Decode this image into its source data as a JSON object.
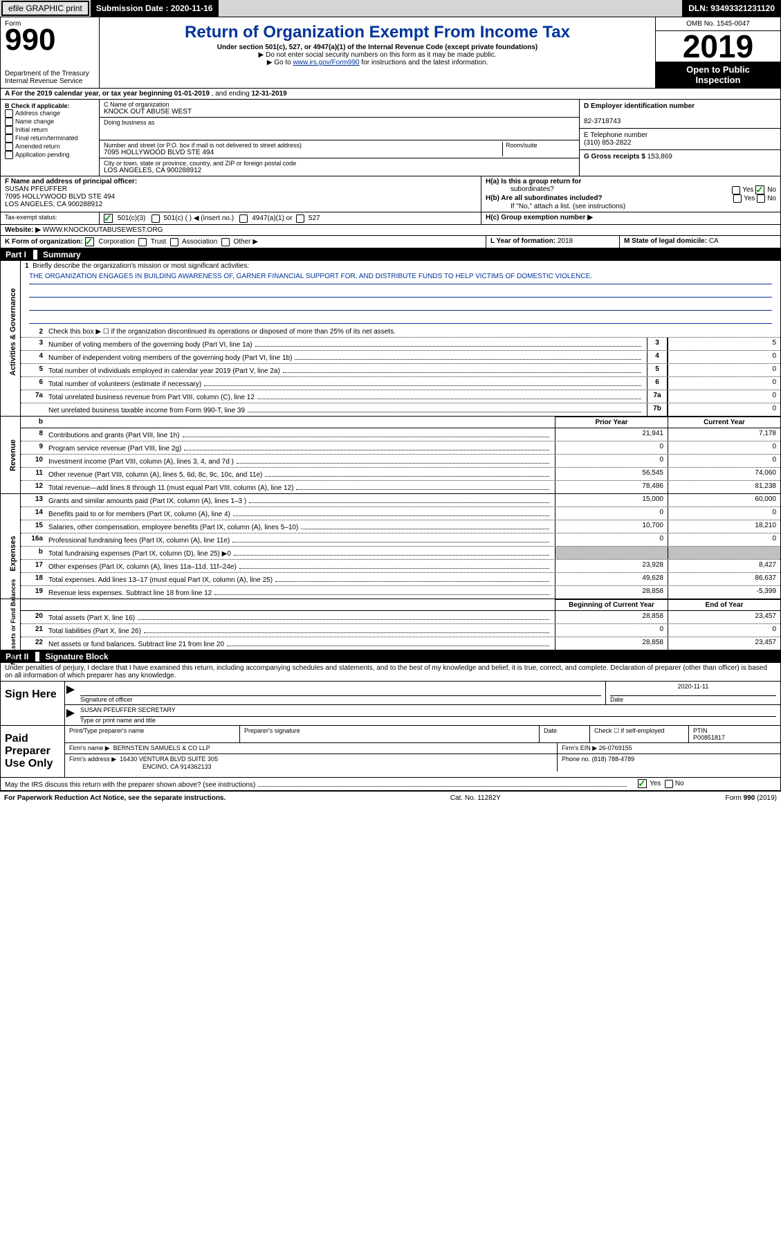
{
  "top": {
    "efile": "efile GRAPHIC print",
    "subdate_lbl": "Submission Date :",
    "subdate": "2020-11-16",
    "dln_lbl": "DLN:",
    "dln": "93493321231120"
  },
  "header": {
    "form_lbl": "Form",
    "form_no": "990",
    "title": "Return of Organization Exempt From Income Tax",
    "subtitle": "Under section 501(c), 527, or 4947(a)(1) of the Internal Revenue Code (except private foundations)",
    "bullet1": "▶ Do not enter social security numbers on this form as it may be made public.",
    "bullet2_pre": "▶ Go to ",
    "bullet2_link": "www.irs.gov/Form990",
    "bullet2_post": " for instructions and the latest information.",
    "dept": "Department of the Treasury\nInternal Revenue Service",
    "omb": "OMB No. 1545-0047",
    "year": "2019",
    "open1": "Open to Public",
    "open2": "Inspection"
  },
  "A": {
    "text_pre": "A For the 2019 calendar year, or tax year beginning ",
    "begin": "01-01-2019",
    "mid": " , and ending ",
    "end": "12-31-2019"
  },
  "B": {
    "header": "B Check if applicable:",
    "items": [
      "Address change",
      "Name change",
      "Initial return",
      "Final return/terminated",
      "Amended return",
      "Application pending"
    ]
  },
  "C": {
    "name_lbl": "C Name of organization",
    "name": "KNOCK OUT ABUSE WEST",
    "dba_lbl": "Doing business as",
    "dba": "",
    "street_lbl": "Number and street (or P.O. box if mail is not delivered to street address)",
    "room_lbl": "Room/suite",
    "street": "7095 HOLLYWOOD BLVD STE 494",
    "city_lbl": "City or town, state or province, country, and ZIP or foreign postal code",
    "city": "LOS ANGELES, CA  900288912"
  },
  "D": {
    "ein_lbl": "D Employer identification number",
    "ein": "82-3718743",
    "phone_lbl": "E Telephone number",
    "phone": "(310) 853-2822",
    "gross_lbl": "G Gross receipts $",
    "gross": "153,869"
  },
  "F": {
    "lbl": "F Name and address of principal officer:",
    "name": "SUSAN PFEUFFER",
    "addr1": "7095 HOLLYWOOD BLVD STE 494",
    "addr2": "LOS ANGELES, CA  900288912"
  },
  "H": {
    "a_lbl": "H(a)  Is this a group return for",
    "a_sub": "subordinates?",
    "b_lbl": "H(b)  Are all subordinates included?",
    "b_note": "If \"No,\" attach a list. (see instructions)",
    "c_lbl": "H(c)  Group exemption number ▶",
    "yes": "Yes",
    "no": "No"
  },
  "I": {
    "lbl": "Tax-exempt status:",
    "opt1": "501(c)(3)",
    "opt2": "501(c) (    )",
    "opt2_arrow": "◀ (insert no.)",
    "opt3": "4947(a)(1) or",
    "opt4": "527"
  },
  "J": {
    "lbl": "Website: ▶",
    "val": "WWW.KNOCKOUTABUSEWEST.ORG"
  },
  "K": {
    "lbl": "K Form of organization:",
    "corp": "Corporation",
    "trust": "Trust",
    "assoc": "Association",
    "other": "Other ▶"
  },
  "L": {
    "lbl": "L Year of formation:",
    "val": "2018"
  },
  "M": {
    "lbl": "M State of legal domicile:",
    "val": "CA"
  },
  "part1": {
    "tab": "Part I",
    "title": "Summary"
  },
  "mission": {
    "num": "1",
    "lbl": "Briefly describe the organization's mission or most significant activities:",
    "text": "THE ORGANIZATION ENGAGES IN BUILDING AWARENESS OF, GARNER FINANCIAL SUPPORT FOR, AND DISTRIBUTE FUNDS TO HELP VICTIMS OF DOMESTIC VIOLENCE."
  },
  "gov_lines": {
    "l2": "Check this box ▶ ☐ if the organization discontinued its operations or disposed of more than 25% of its net assets.",
    "l3": {
      "t": "Number of voting members of the governing body (Part VI, line 1a)",
      "v": "5"
    },
    "l4": {
      "t": "Number of independent voting members of the governing body (Part VI, line 1b)",
      "v": "0"
    },
    "l5": {
      "t": "Total number of individuals employed in calendar year 2019 (Part V, line 2a)",
      "v": "0"
    },
    "l6": {
      "t": "Total number of volunteers (estimate if necessary)",
      "v": "0"
    },
    "l7a": {
      "t": "Total unrelated business revenue from Part VIII, column (C), line 12",
      "v": "0"
    },
    "l7b": {
      "t": "Net unrelated business taxable income from Form 990-T, line 39",
      "v": "0"
    }
  },
  "col_headers": {
    "prior": "Prior Year",
    "curr": "Current Year"
  },
  "revenue": [
    {
      "n": "8",
      "t": "Contributions and grants (Part VIII, line 1h)",
      "p": "21,941",
      "c": "7,178"
    },
    {
      "n": "9",
      "t": "Program service revenue (Part VIII, line 2g)",
      "p": "0",
      "c": "0"
    },
    {
      "n": "10",
      "t": "Investment income (Part VIII, column (A), lines 3, 4, and 7d )",
      "p": "0",
      "c": "0"
    },
    {
      "n": "11",
      "t": "Other revenue (Part VIII, column (A), lines 5, 6d, 8c, 9c, 10c, and 11e)",
      "p": "56,545",
      "c": "74,060"
    },
    {
      "n": "12",
      "t": "Total revenue—add lines 8 through 11 (must equal Part VIII, column (A), line 12)",
      "p": "78,486",
      "c": "81,238"
    }
  ],
  "expenses": [
    {
      "n": "13",
      "t": "Grants and similar amounts paid (Part IX, column (A), lines 1–3 )",
      "p": "15,000",
      "c": "60,000"
    },
    {
      "n": "14",
      "t": "Benefits paid to or for members (Part IX, column (A), line 4)",
      "p": "0",
      "c": "0"
    },
    {
      "n": "15",
      "t": "Salaries, other compensation, employee benefits (Part IX, column (A), lines 5–10)",
      "p": "10,700",
      "c": "18,210"
    },
    {
      "n": "16a",
      "t": "Professional fundraising fees (Part IX, column (A), line 11e)",
      "p": "0",
      "c": "0"
    },
    {
      "n": "b",
      "t": "Total fundraising expenses (Part IX, column (D), line 25) ▶0",
      "p": "",
      "c": "",
      "shaded": true
    },
    {
      "n": "17",
      "t": "Other expenses (Part IX, column (A), lines 11a–11d, 11f–24e)",
      "p": "23,928",
      "c": "8,427"
    },
    {
      "n": "18",
      "t": "Total expenses. Add lines 13–17 (must equal Part IX, column (A), line 25)",
      "p": "49,628",
      "c": "86,637"
    },
    {
      "n": "19",
      "t": "Revenue less expenses. Subtract line 18 from line 12",
      "p": "28,858",
      "c": "-5,399"
    }
  ],
  "na_headers": {
    "b": "Beginning of Current Year",
    "e": "End of Year"
  },
  "netassets": [
    {
      "n": "20",
      "t": "Total assets (Part X, line 16)",
      "p": "28,858",
      "c": "23,457"
    },
    {
      "n": "21",
      "t": "Total liabilities (Part X, line 26)",
      "p": "0",
      "c": "0"
    },
    {
      "n": "22",
      "t": "Net assets or fund balances. Subtract line 21 from line 20",
      "p": "28,858",
      "c": "23,457"
    }
  ],
  "part2": {
    "tab": "Part II",
    "title": "Signature Block",
    "penalty": "Under penalties of perjury, I declare that I have examined this return, including accompanying schedules and statements, and to the best of my knowledge and belief, it is true, correct, and complete. Declaration of preparer (other than officer) is based on all information of which preparer has any knowledge."
  },
  "sign": {
    "lbl": "Sign Here",
    "sig_officer_lbl": "Signature of officer",
    "date_lbl": "Date",
    "date": "2020-11-11",
    "name": "SUSAN PFEUFFER  SECRETARY",
    "name_lbl": "Type or print name and title"
  },
  "paid": {
    "lbl": "Paid Preparer Use Only",
    "c1": "Print/Type preparer's name",
    "c2": "Preparer's signature",
    "c3": "Date",
    "c4_lbl": "Check ☐ if self-employed",
    "ptin_lbl": "PTIN",
    "ptin": "P00851817",
    "firm_lbl": "Firm's name    ▶",
    "firm": "BERNSTEIN SAMUELS & CO LLP",
    "ein_lbl": "Firm's EIN ▶",
    "ein": "26-0769155",
    "addr_lbl": "Firm's address ▶",
    "addr1": "16430 VENTURA BLVD SUITE 305",
    "addr2": "ENCINO, CA  914362133",
    "phone_lbl": "Phone no.",
    "phone": "(818) 788-4789"
  },
  "discuss": {
    "t": "May the IRS discuss this return with the preparer shown above? (see instructions)",
    "yes": "Yes",
    "no": "No"
  },
  "footer": {
    "left": "For Paperwork Reduction Act Notice, see the separate instructions.",
    "mid": "Cat. No. 11282Y",
    "right_pre": "Form ",
    "right_b": "990",
    "right_post": " (2019)"
  },
  "side_labels": {
    "gov": "Activities & Governance",
    "rev": "Revenue",
    "exp": "Expenses",
    "na": "Net Assets or Fund Balances"
  }
}
